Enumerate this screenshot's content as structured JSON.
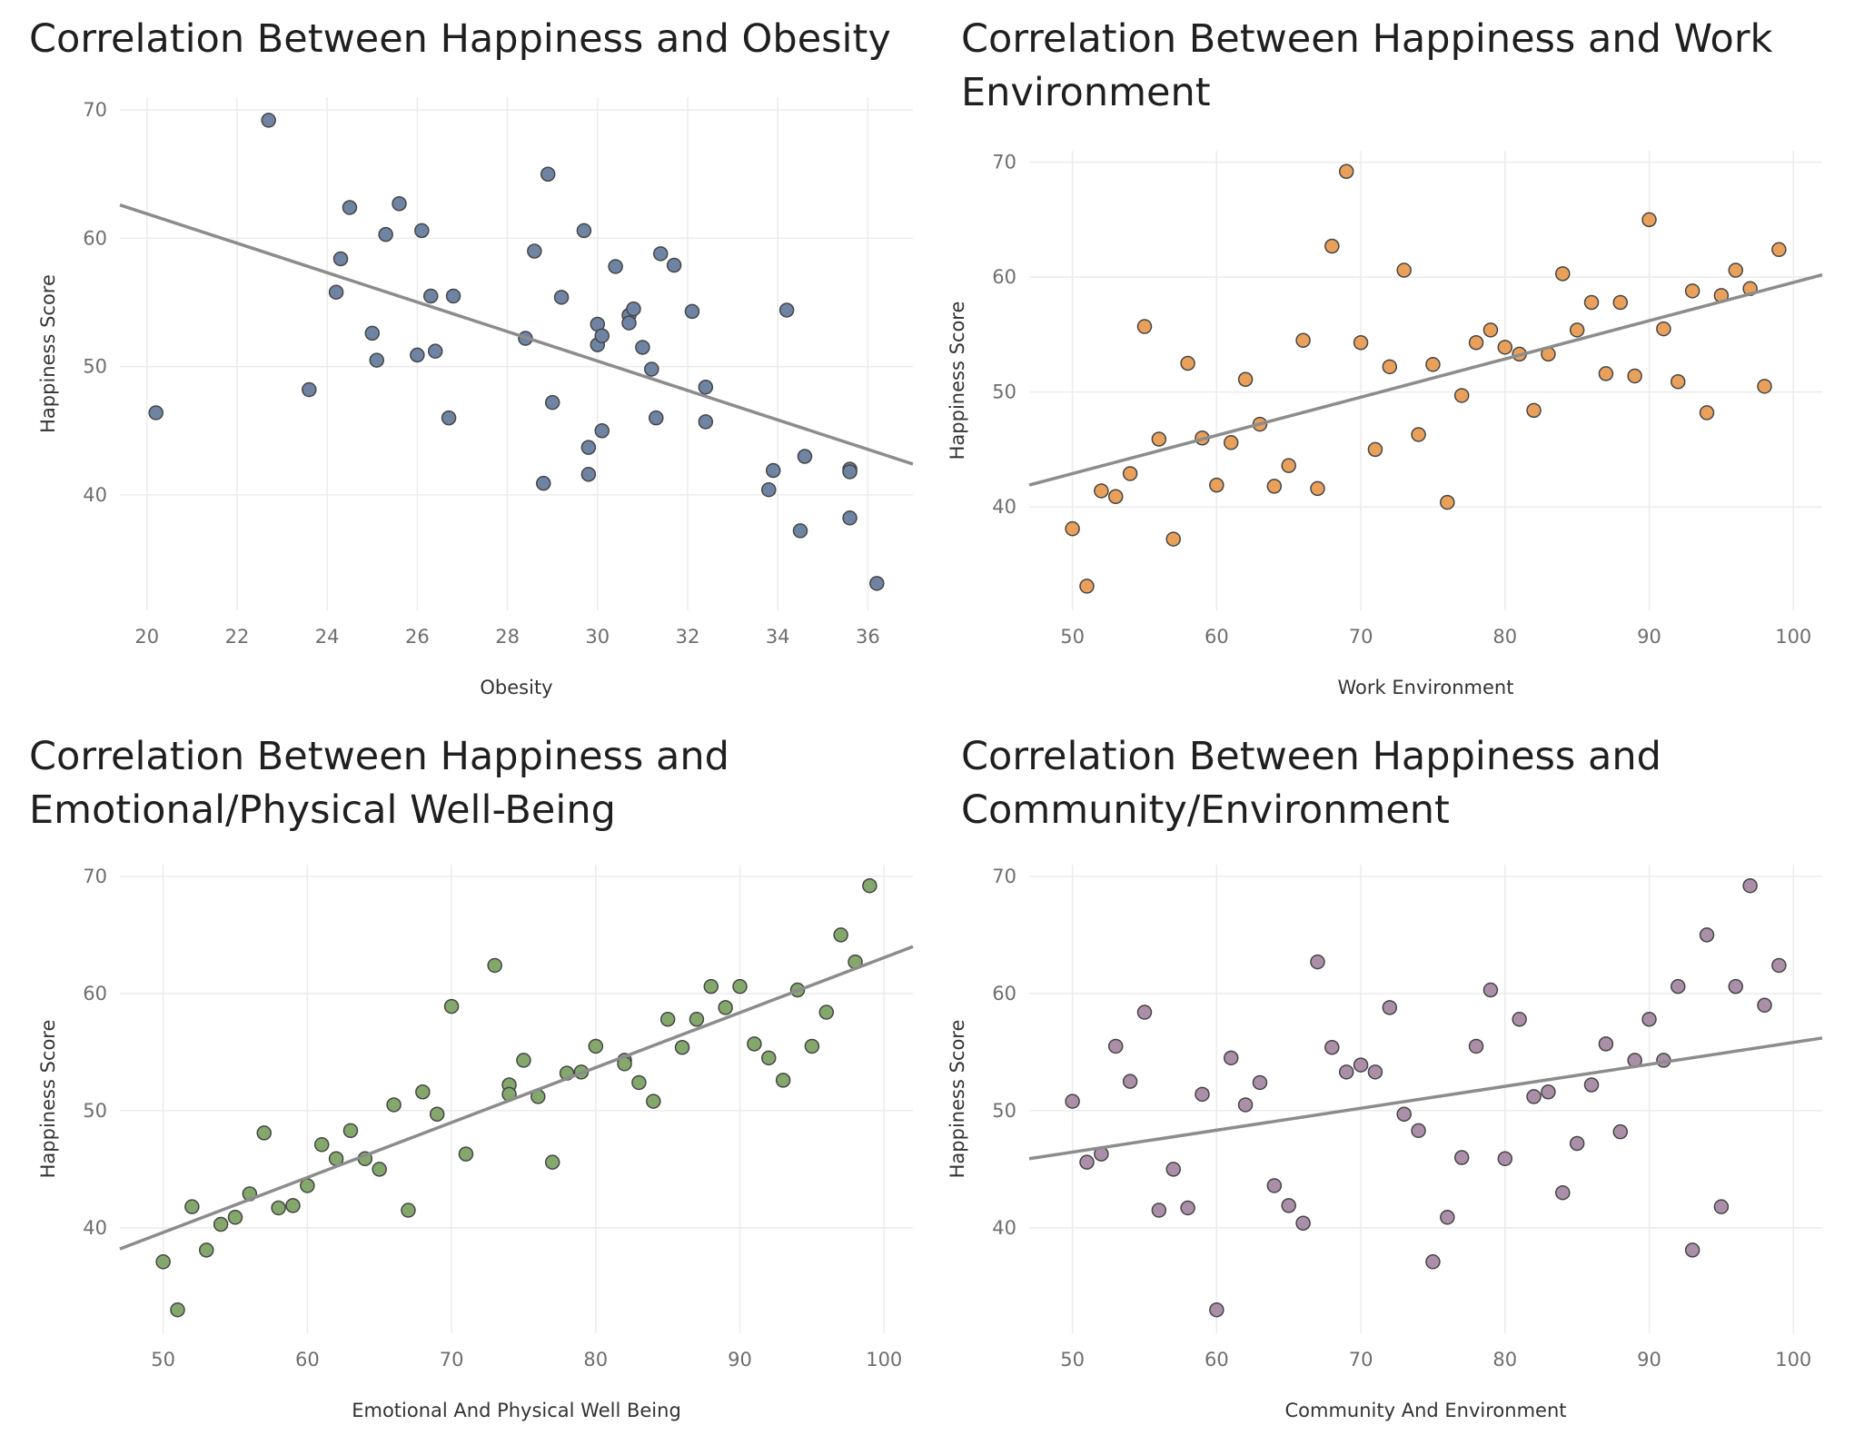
{
  "charts": [
    {
      "title": "Correlation Between Happiness and Obesity",
      "color": "#6f83a3",
      "chart_data": {
        "type": "scatter",
        "title": "Correlation Between Happiness and Obesity",
        "xlabel": "Obesity",
        "ylabel": "Happiness Score",
        "xlim": [
          19.4,
          37.0
        ],
        "ylim": [
          31.0,
          71.0
        ],
        "xticks": [
          20,
          22,
          24,
          26,
          28,
          30,
          32,
          34,
          36
        ],
        "yticks": [
          40,
          50,
          60,
          70
        ],
        "grid": true,
        "trendline": [
          [
            19.4,
            62.6
          ],
          [
            37.0,
            42.4
          ]
        ],
        "points": [
          [
            20.2,
            46.4
          ],
          [
            22.7,
            69.2
          ],
          [
            23.6,
            48.2
          ],
          [
            24.2,
            55.8
          ],
          [
            24.3,
            58.4
          ],
          [
            24.5,
            62.4
          ],
          [
            25.0,
            52.6
          ],
          [
            25.1,
            50.5
          ],
          [
            25.3,
            60.3
          ],
          [
            25.6,
            62.7
          ],
          [
            26.0,
            50.9
          ],
          [
            26.1,
            60.6
          ],
          [
            26.3,
            55.5
          ],
          [
            26.4,
            51.2
          ],
          [
            26.7,
            46.0
          ],
          [
            26.8,
            55.5
          ],
          [
            28.4,
            52.2
          ],
          [
            28.6,
            59.0
          ],
          [
            28.8,
            40.9
          ],
          [
            28.9,
            65.0
          ],
          [
            29.0,
            47.2
          ],
          [
            29.2,
            55.4
          ],
          [
            29.7,
            60.6
          ],
          [
            29.8,
            43.7
          ],
          [
            29.8,
            41.6
          ],
          [
            30.0,
            53.3
          ],
          [
            30.0,
            51.7
          ],
          [
            30.1,
            52.4
          ],
          [
            30.1,
            45.0
          ],
          [
            30.4,
            57.8
          ],
          [
            30.7,
            54.0
          ],
          [
            30.7,
            53.4
          ],
          [
            30.8,
            54.5
          ],
          [
            31.0,
            51.5
          ],
          [
            31.2,
            49.8
          ],
          [
            31.3,
            46.0
          ],
          [
            31.4,
            58.8
          ],
          [
            31.7,
            57.9
          ],
          [
            32.1,
            54.3
          ],
          [
            32.4,
            48.4
          ],
          [
            32.4,
            45.7
          ],
          [
            33.8,
            40.4
          ],
          [
            33.9,
            41.9
          ],
          [
            34.2,
            54.4
          ],
          [
            34.5,
            37.2
          ],
          [
            34.6,
            43.0
          ],
          [
            35.6,
            42.0
          ],
          [
            35.6,
            41.8
          ],
          [
            35.6,
            38.2
          ],
          [
            36.2,
            33.1
          ]
        ]
      }
    },
    {
      "title": "Correlation Between Happiness and Work Environment",
      "color": "#e9a05b",
      "chart_data": {
        "type": "scatter",
        "title": "Correlation Between Happiness and Work Environment",
        "xlabel": "Work Environment",
        "ylabel": "Happiness Score",
        "xlim": [
          47.0,
          102.0
        ],
        "ylim": [
          31.0,
          71.0
        ],
        "xticks": [
          50,
          60,
          70,
          80,
          90,
          100
        ],
        "yticks": [
          40,
          50,
          60,
          70
        ],
        "grid": true,
        "trendline": [
          [
            47.0,
            41.9
          ],
          [
            102.0,
            60.2
          ]
        ],
        "points": [
          [
            50,
            38.1
          ],
          [
            51,
            33.1
          ],
          [
            52,
            41.4
          ],
          [
            53,
            40.9
          ],
          [
            54,
            42.9
          ],
          [
            55,
            55.7
          ],
          [
            56,
            45.9
          ],
          [
            57,
            37.2
          ],
          [
            58,
            52.5
          ],
          [
            59,
            46.0
          ],
          [
            60,
            41.9
          ],
          [
            61,
            45.6
          ],
          [
            62,
            51.1
          ],
          [
            63,
            47.2
          ],
          [
            64,
            41.8
          ],
          [
            65,
            43.6
          ],
          [
            66,
            54.5
          ],
          [
            67,
            41.6
          ],
          [
            68,
            62.7
          ],
          [
            69,
            69.2
          ],
          [
            70,
            54.3
          ],
          [
            71,
            45.0
          ],
          [
            72,
            52.2
          ],
          [
            73,
            60.6
          ],
          [
            74,
            46.3
          ],
          [
            75,
            52.4
          ],
          [
            76,
            40.4
          ],
          [
            77,
            49.7
          ],
          [
            78,
            54.3
          ],
          [
            79,
            55.4
          ],
          [
            80,
            53.9
          ],
          [
            81,
            53.3
          ],
          [
            82,
            48.4
          ],
          [
            83,
            53.3
          ],
          [
            84,
            60.3
          ],
          [
            85,
            55.4
          ],
          [
            86,
            57.8
          ],
          [
            87,
            51.6
          ],
          [
            88,
            57.8
          ],
          [
            89,
            51.4
          ],
          [
            90,
            65.0
          ],
          [
            91,
            55.5
          ],
          [
            92,
            50.9
          ],
          [
            93,
            58.8
          ],
          [
            94,
            48.2
          ],
          [
            95,
            58.4
          ],
          [
            96,
            60.6
          ],
          [
            97,
            59.0
          ],
          [
            98,
            50.5
          ],
          [
            99,
            62.4
          ]
        ]
      }
    },
    {
      "title": "Correlation Between Happiness and Emotional/Physical Well-Being",
      "color": "#84a86c",
      "chart_data": {
        "type": "scatter",
        "title": "Correlation Between Happiness and Emotional/Physical Well-Being",
        "xlabel": "Emotional And Physical Well Being",
        "ylabel": "Happiness Score",
        "xlim": [
          47.0,
          102.0
        ],
        "ylim": [
          31.0,
          71.0
        ],
        "xticks": [
          50,
          60,
          70,
          80,
          90,
          100
        ],
        "yticks": [
          40,
          50,
          60,
          70
        ],
        "grid": true,
        "trendline": [
          [
            47.0,
            38.2
          ],
          [
            102.0,
            64.0
          ]
        ],
        "points": [
          [
            50,
            37.1
          ],
          [
            51,
            33.0
          ],
          [
            52,
            41.8
          ],
          [
            53,
            38.1
          ],
          [
            54,
            40.3
          ],
          [
            55,
            40.9
          ],
          [
            56,
            42.9
          ],
          [
            57,
            48.1
          ],
          [
            58,
            41.7
          ],
          [
            59,
            41.9
          ],
          [
            60,
            43.6
          ],
          [
            61,
            47.1
          ],
          [
            62,
            45.9
          ],
          [
            63,
            48.3
          ],
          [
            64,
            45.9
          ],
          [
            65,
            45.0
          ],
          [
            66,
            50.5
          ],
          [
            67,
            41.5
          ],
          [
            68,
            51.6
          ],
          [
            69,
            49.7
          ],
          [
            70,
            58.9
          ],
          [
            71,
            46.3
          ],
          [
            73,
            62.4
          ],
          [
            74,
            52.2
          ],
          [
            74,
            51.4
          ],
          [
            75,
            54.3
          ],
          [
            76,
            51.2
          ],
          [
            77,
            45.6
          ],
          [
            78,
            53.2
          ],
          [
            79,
            53.3
          ],
          [
            80,
            55.5
          ],
          [
            82,
            54.3
          ],
          [
            82,
            54.0
          ],
          [
            83,
            52.4
          ],
          [
            84,
            50.8
          ],
          [
            85,
            57.8
          ],
          [
            86,
            55.4
          ],
          [
            87,
            57.8
          ],
          [
            88,
            60.6
          ],
          [
            89,
            58.8
          ],
          [
            90,
            60.6
          ],
          [
            91,
            55.7
          ],
          [
            92,
            54.5
          ],
          [
            93,
            52.6
          ],
          [
            94,
            60.3
          ],
          [
            95,
            55.5
          ],
          [
            96,
            58.4
          ],
          [
            97,
            65.0
          ],
          [
            98,
            62.7
          ],
          [
            99,
            69.2
          ]
        ]
      }
    },
    {
      "title": "Correlation Between Happiness and Community/Environment",
      "color": "#ab8fa8",
      "chart_data": {
        "type": "scatter",
        "title": "Correlation Between Happiness and Community/Environment",
        "xlabel": "Community And Environment",
        "ylabel": "Happiness Score",
        "xlim": [
          47.0,
          102.0
        ],
        "ylim": [
          31.0,
          71.0
        ],
        "xticks": [
          50,
          60,
          70,
          80,
          90,
          100
        ],
        "yticks": [
          40,
          50,
          60,
          70
        ],
        "grid": true,
        "trendline": [
          [
            47.0,
            45.9
          ],
          [
            102.0,
            56.2
          ]
        ],
        "points": [
          [
            50,
            50.8
          ],
          [
            51,
            45.6
          ],
          [
            52,
            46.3
          ],
          [
            53,
            55.5
          ],
          [
            54,
            52.5
          ],
          [
            55,
            58.4
          ],
          [
            56,
            41.5
          ],
          [
            57,
            45.0
          ],
          [
            58,
            41.7
          ],
          [
            59,
            51.4
          ],
          [
            60,
            33.0
          ],
          [
            61,
            54.5
          ],
          [
            62,
            50.5
          ],
          [
            63,
            52.4
          ],
          [
            64,
            43.6
          ],
          [
            65,
            41.9
          ],
          [
            66,
            40.4
          ],
          [
            67,
            62.7
          ],
          [
            68,
            55.4
          ],
          [
            69,
            53.3
          ],
          [
            70,
            53.9
          ],
          [
            71,
            53.3
          ],
          [
            72,
            58.8
          ],
          [
            73,
            49.7
          ],
          [
            74,
            48.3
          ],
          [
            75,
            37.1
          ],
          [
            76,
            40.9
          ],
          [
            77,
            46.0
          ],
          [
            78,
            55.5
          ],
          [
            79,
            60.3
          ],
          [
            80,
            45.9
          ],
          [
            81,
            57.8
          ],
          [
            82,
            51.2
          ],
          [
            83,
            51.6
          ],
          [
            84,
            43.0
          ],
          [
            85,
            47.2
          ],
          [
            86,
            52.2
          ],
          [
            87,
            55.7
          ],
          [
            88,
            48.2
          ],
          [
            89,
            54.3
          ],
          [
            90,
            57.8
          ],
          [
            91,
            54.3
          ],
          [
            92,
            60.6
          ],
          [
            93,
            38.1
          ],
          [
            94,
            65.0
          ],
          [
            95,
            41.8
          ],
          [
            96,
            60.6
          ],
          [
            97,
            69.2
          ],
          [
            98,
            59.0
          ],
          [
            99,
            62.4
          ]
        ]
      }
    }
  ]
}
